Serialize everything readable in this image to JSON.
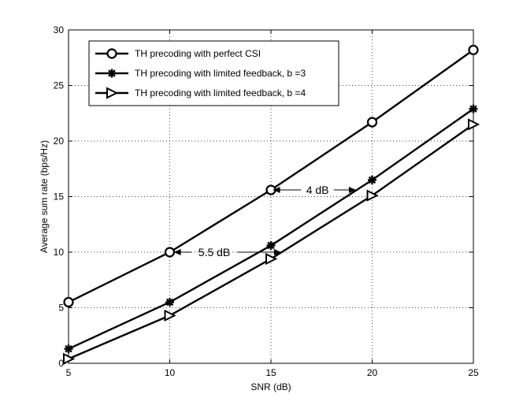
{
  "chart_data": {
    "type": "line",
    "title": "",
    "xlabel": "SNR (dB)",
    "ylabel": "Average sum rate (bps/Hz)",
    "x": [
      5,
      10,
      15,
      20,
      25
    ],
    "xlim": [
      5,
      25
    ],
    "ylim": [
      0,
      30
    ],
    "xticks": [
      5,
      10,
      15,
      20,
      25
    ],
    "yticks": [
      0,
      5,
      10,
      15,
      20,
      25,
      30
    ],
    "grid": true,
    "legend_position": "top-left",
    "series": [
      {
        "name": "TH precoding with perfect CSI",
        "marker": "circle",
        "values": [
          5.5,
          10.0,
          15.6,
          21.7,
          28.2
        ]
      },
      {
        "name": "TH precoding with limited feedback, b =3",
        "marker": "star",
        "values": [
          1.3,
          5.5,
          10.6,
          16.5,
          22.9
        ]
      },
      {
        "name": "TH precoding with limited feedback, b =4",
        "marker": "triangle-right",
        "values": [
          0.4,
          4.3,
          9.4,
          15.1,
          21.5
        ]
      }
    ],
    "annotations": [
      {
        "text": "4 dB",
        "text_x": 17.3,
        "text_y": 15.6,
        "arrow_from": 16.5,
        "arrow_to": 15.1,
        "arrow_end_left": 15.1,
        "arrow_end_right": 19.2
      },
      {
        "text": "5.5 dB",
        "text_x": 12.2,
        "text_y": 10.0,
        "arrow_end_left": 10.2,
        "arrow_end_right": 15.5
      }
    ]
  }
}
